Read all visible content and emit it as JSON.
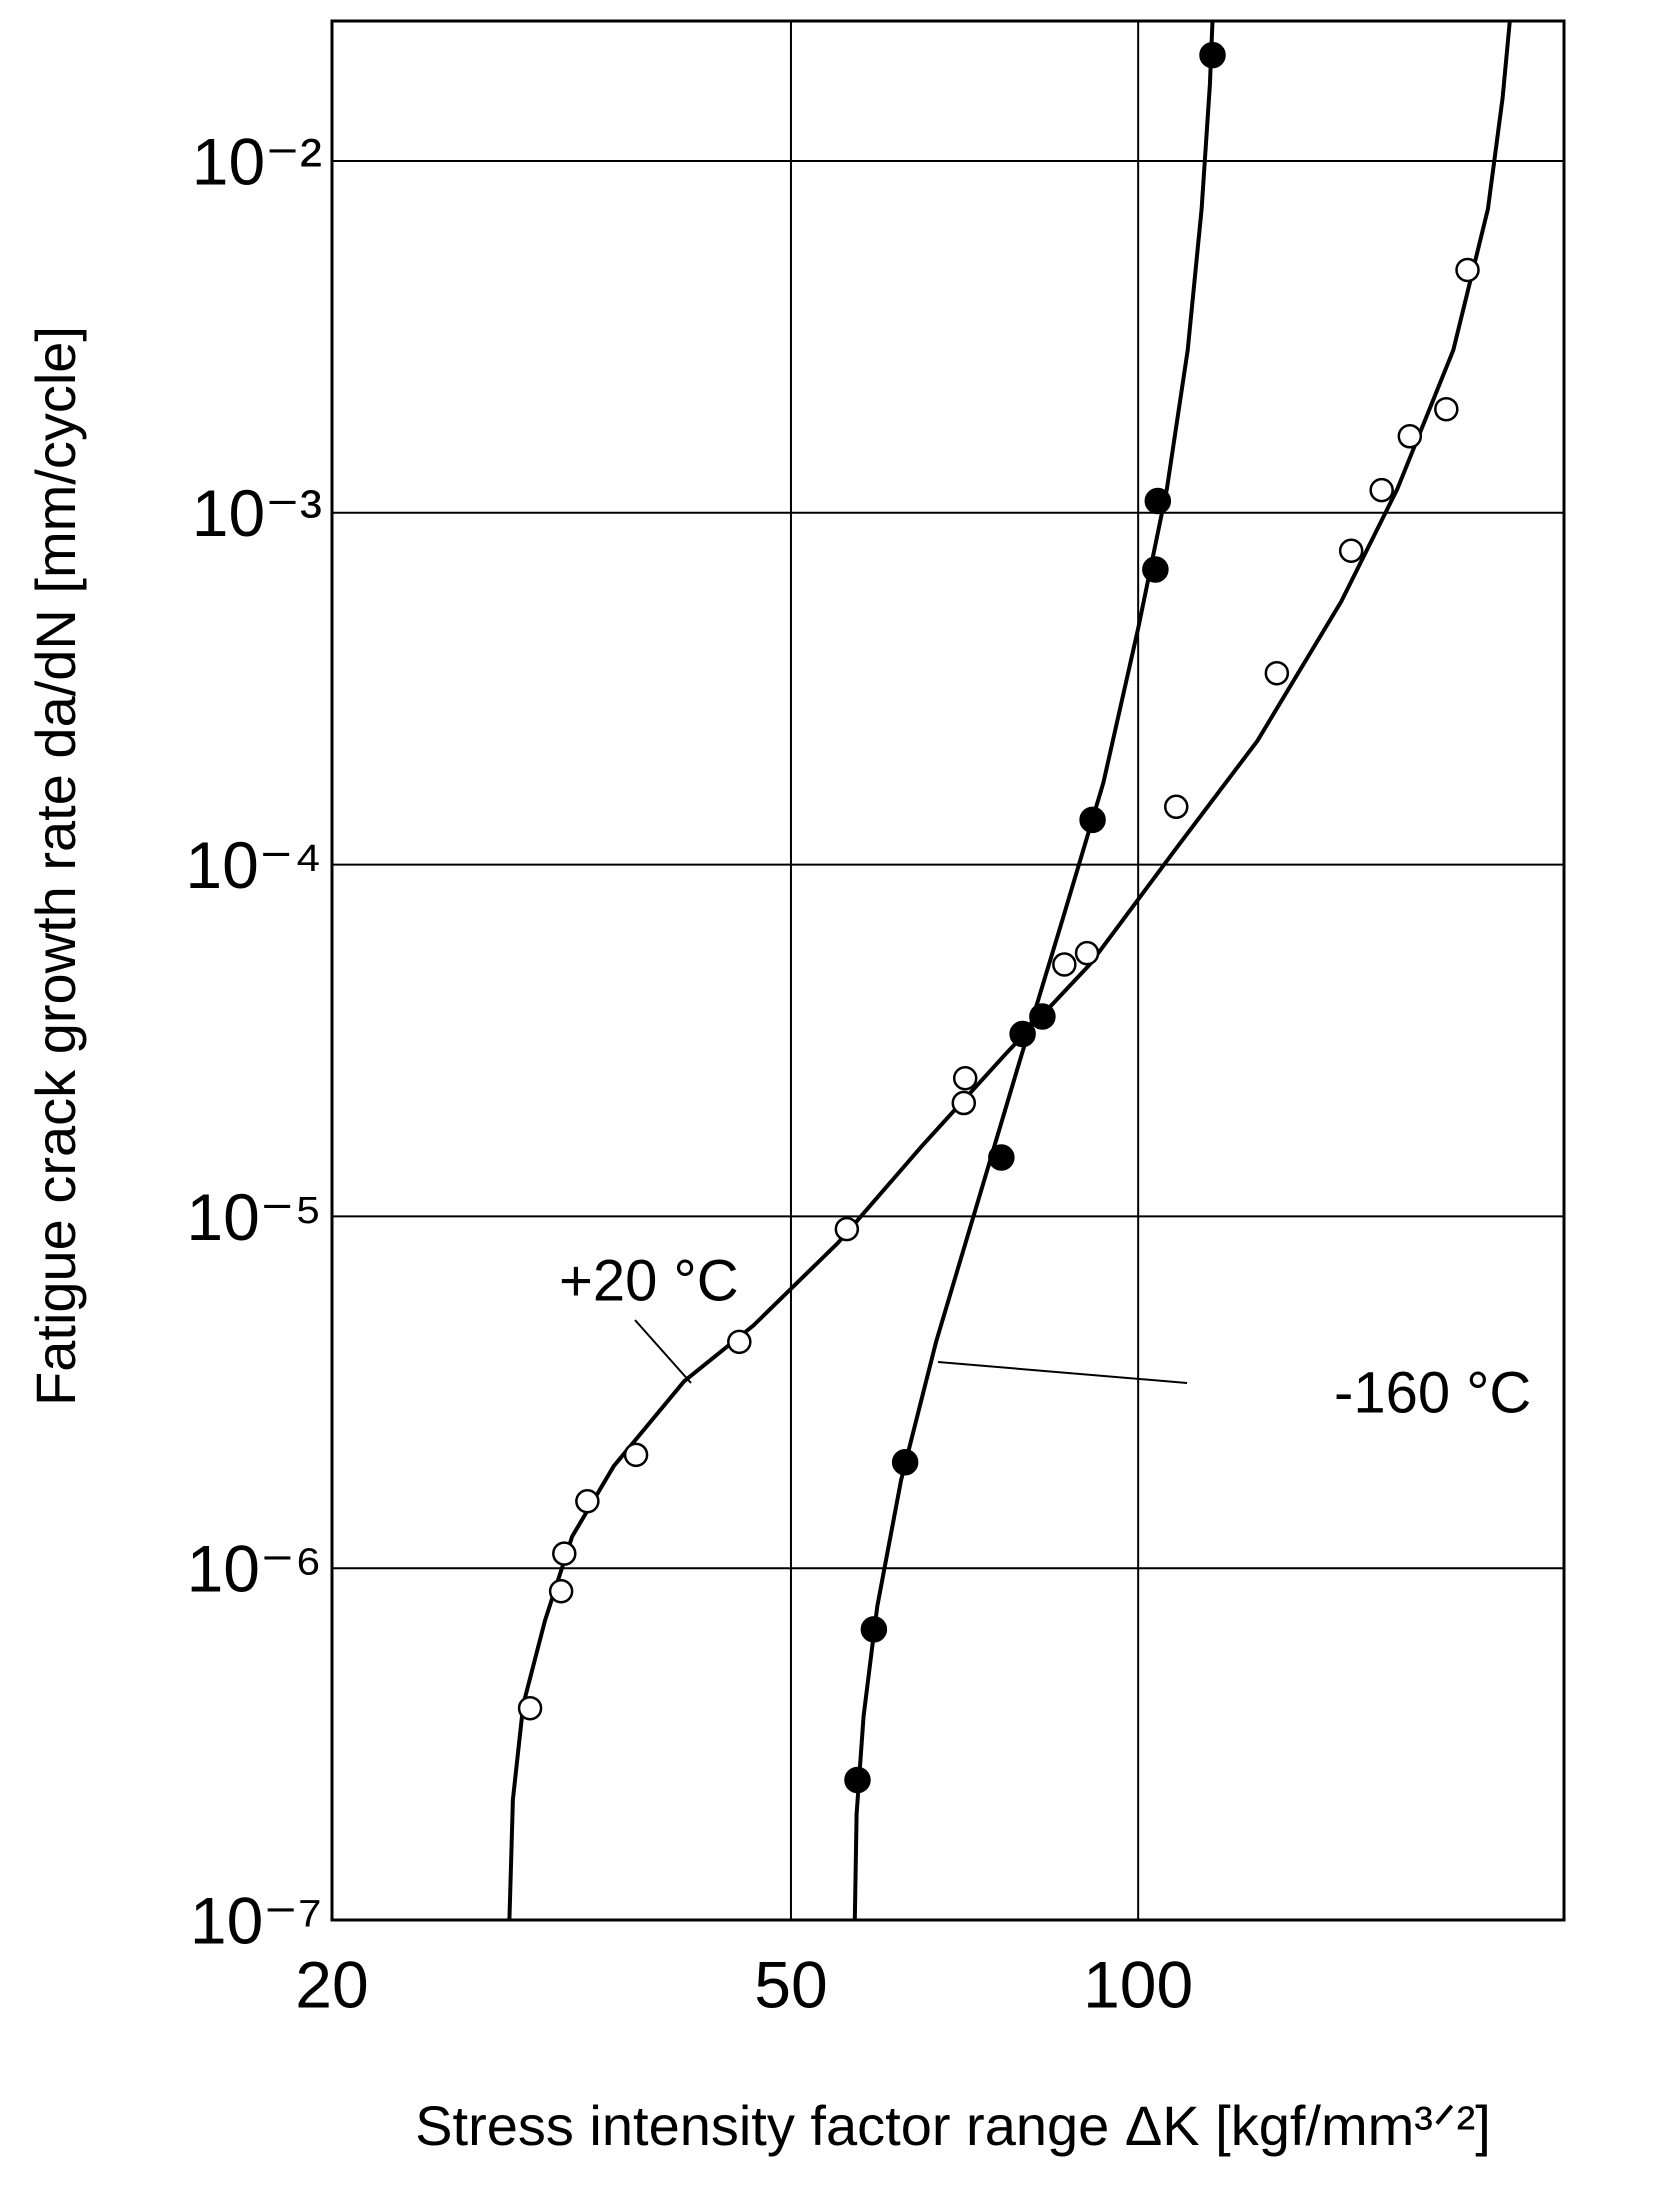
{
  "chart_data": {
    "type": "scatter",
    "x_label": "Stress intensity factor range ΔK [kgf/mm³ᐟ²]",
    "y_label": "Fatigue crack growth rate da/dN [mm/cycle]",
    "xscale": "log",
    "yscale": "log",
    "grid": true,
    "xlim": [
      20,
      234
    ],
    "ylim": [
      1e-07,
      0.025
    ],
    "xticks": [
      20,
      50,
      100
    ],
    "yticks": [
      {
        "value": 1e-07,
        "label": "10⁻⁷"
      },
      {
        "value": 1e-06,
        "label": "10⁻⁶"
      },
      {
        "value": 1e-05,
        "label": "10⁻⁵"
      },
      {
        "value": 0.0001,
        "label": "10⁻⁴"
      },
      {
        "value": 0.001,
        "label": "10⁻³"
      },
      {
        "value": 0.01,
        "label": "10⁻²"
      }
    ],
    "series": [
      {
        "name": "+20 °C",
        "marker": "open",
        "color": "#000000",
        "x": [
          29.7,
          31.6,
          31.8,
          33.3,
          36.7,
          45.1,
          55.9,
          70.6,
          70.8,
          86.3,
          90.3,
          107.9,
          131.9,
          153,
          162.6,
          172,
          185,
          193
        ],
        "values": [
          4e-07,
          8.6e-07,
          1.1e-06,
          1.55e-06,
          2.1e-06,
          4.4e-06,
          9.2e-06,
          2.1e-05,
          2.47e-05,
          5.2e-05,
          5.6e-05,
          0.000146,
          0.00035,
          0.00078,
          0.00116,
          0.00165,
          0.00197,
          0.0049
        ],
        "curve": {
          "x": [
            28.5,
            28.7,
            29.3,
            30.6,
            32.3,
            35.1,
            40.4,
            46.4,
            54.9,
            65.0,
            76.8,
            90.8,
            107.4,
            126.9,
            150.0,
            167.8,
            187.6,
            201,
            207,
            210
          ],
          "values": [
            1e-07,
            2.2e-07,
            4.1e-07,
            7.1e-07,
            1.23e-06,
            1.95e-06,
            3.4e-06,
            4.9e-06,
            8.4e-06,
            1.59e-05,
            2.9e-05,
            5.2e-05,
            0.000109,
            0.000225,
            0.00056,
            0.00117,
            0.0029,
            0.0073,
            0.0151,
            0.025
          ]
        }
      },
      {
        "name": "-160 °C",
        "marker": "filled",
        "color": "#000000",
        "x": [
          57.1,
          59.0,
          62.8,
          76.1,
          79.4,
          82.6,
          91.3,
          103.5,
          104,
          116
        ],
        "values": [
          2.5e-07,
          6.7e-07,
          2e-06,
          1.47e-05,
          3.3e-05,
          3.7e-05,
          0.000134,
          0.00069,
          0.00108,
          0.02
        ],
        "curve": {
          "x": [
            56.8,
            57.0,
            57.8,
            59.4,
            62.3,
            66.8,
            72.6,
            78.9,
            85.9,
            93.3,
            100,
            105.9,
            110.4,
            113.5,
            115.4,
            116
          ],
          "values": [
            1e-07,
            2e-07,
            3.8e-07,
            7.8e-07,
            1.78e-06,
            4.4e-06,
            1.1e-05,
            2.75e-05,
            6.9e-05,
            0.000171,
            0.00047,
            0.00117,
            0.0029,
            0.0073,
            0.0165,
            0.025
          ]
        }
      }
    ]
  }
}
